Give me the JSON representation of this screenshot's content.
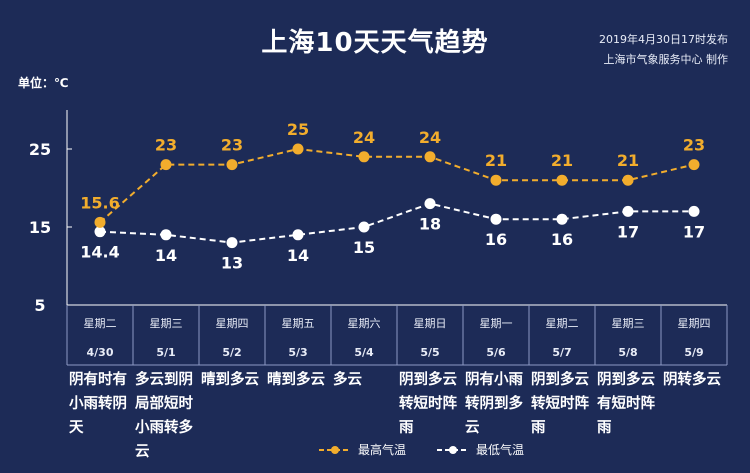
{
  "header": {
    "title": "上海10天天气趋势",
    "publish_line1": "2019年4月30日17时发布",
    "publish_line2": "上海市气象服务中心  制作",
    "unit_label": "单位：℃"
  },
  "legend": {
    "high_label": "最高气温",
    "low_label": "最低气温"
  },
  "colors": {
    "background": "#1d2b57",
    "high": "#f2ad2d",
    "low": "#ffffff",
    "text": "#ffffff"
  },
  "chart_data": {
    "type": "line",
    "title": "上海10天天气趋势",
    "ylabel": "单位：℃",
    "ylim": [
      5,
      30
    ],
    "yticks": [
      5,
      15,
      25
    ],
    "grid": false,
    "legend_position": "bottom",
    "categories": [
      "4/30",
      "5/1",
      "5/2",
      "5/3",
      "5/4",
      "5/5",
      "5/6",
      "5/7",
      "5/8",
      "5/9"
    ],
    "weekdays": [
      "星期二",
      "星期三",
      "星期四",
      "星期五",
      "星期六",
      "星期日",
      "星期一",
      "星期二",
      "星期三",
      "星期四"
    ],
    "weather": [
      [
        "阴有时有",
        "小雨转阴",
        "天"
      ],
      [
        "多云到阴",
        "局部短时",
        "小雨转多",
        "云"
      ],
      [
        "晴到多云"
      ],
      [
        "晴到多云"
      ],
      [
        "多云"
      ],
      [
        "阴到多云",
        "转短时阵",
        "雨"
      ],
      [
        "阴有小雨",
        "转阴到多",
        "云"
      ],
      [
        "阴到多云",
        "转短时阵",
        "雨"
      ],
      [
        "阴到多云",
        "有短时阵",
        "雨"
      ],
      [
        "阴转多云"
      ]
    ],
    "series": [
      {
        "name": "最高气温",
        "values": [
          15.6,
          23,
          23,
          25,
          24,
          24,
          21,
          21,
          21,
          23
        ],
        "labels": [
          "15.6",
          "23",
          "23",
          "25",
          "24",
          "24",
          "21",
          "21",
          "21",
          "23"
        ]
      },
      {
        "name": "最低气温",
        "values": [
          14.4,
          14,
          13,
          14,
          15,
          18,
          16,
          16,
          17,
          17
        ],
        "labels": [
          "14.4",
          "14",
          "13",
          "14",
          "15",
          "18",
          "16",
          "16",
          "17",
          "17"
        ]
      }
    ]
  }
}
